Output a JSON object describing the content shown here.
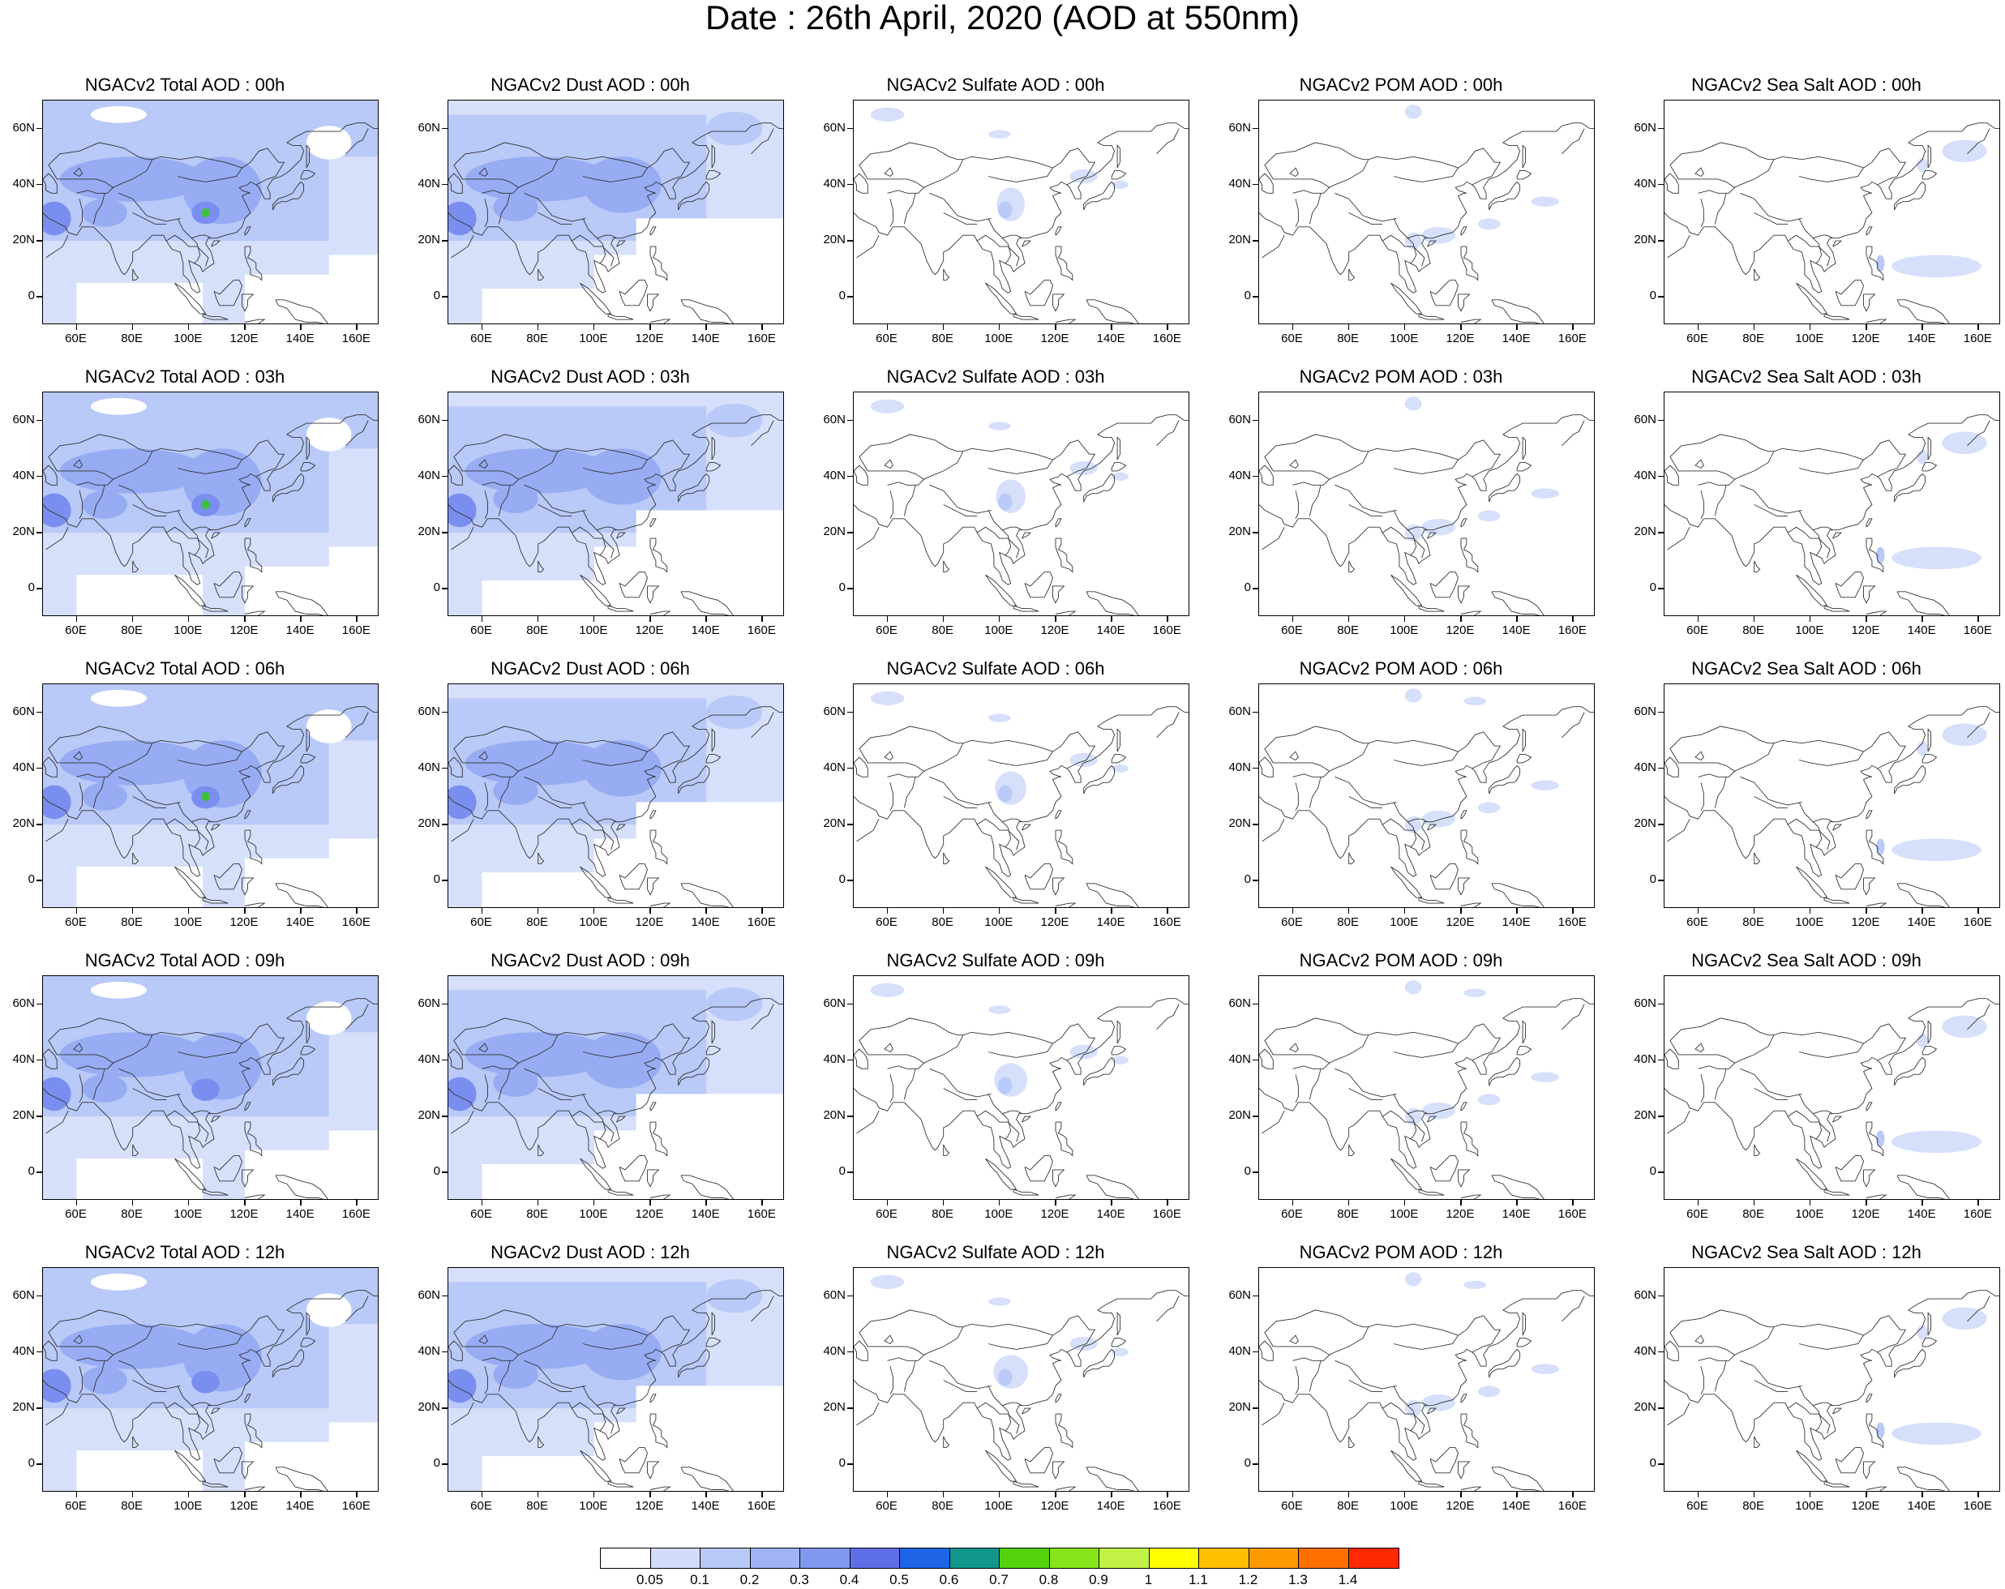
{
  "title": "Date : 26th April, 2020 (AOD at 550nm)",
  "map": {
    "lon_range": [
      48,
      168
    ],
    "lat_range": [
      -10,
      70
    ],
    "lon_ticks": [
      "60E",
      "80E",
      "100E",
      "120E",
      "140E",
      "160E"
    ],
    "lon_tick_values": [
      60,
      80,
      100,
      120,
      140,
      160
    ],
    "lat_ticks": [
      "60N",
      "40N",
      "20N",
      "0"
    ],
    "lat_tick_values": [
      60,
      40,
      20,
      0
    ]
  },
  "panels": [
    [
      "NGACv2 Total AOD : 00h",
      "NGACv2 Dust AOD : 00h",
      "NGACv2 Sulfate AOD : 00h",
      "NGACv2 POM AOD : 00h",
      "NGACv2 Sea Salt AOD : 00h"
    ],
    [
      "NGACv2 Total AOD : 03h",
      "NGACv2 Dust AOD : 03h",
      "NGACv2 Sulfate AOD : 03h",
      "NGACv2 POM AOD : 03h",
      "NGACv2 Sea Salt AOD : 03h"
    ],
    [
      "NGACv2 Total AOD : 06h",
      "NGACv2 Dust AOD : 06h",
      "NGACv2 Sulfate AOD : 06h",
      "NGACv2 POM AOD : 06h",
      "NGACv2 Sea Salt AOD : 06h"
    ],
    [
      "NGACv2 Total AOD : 09h",
      "NGACv2 Dust AOD : 09h",
      "NGACv2 Sulfate AOD : 09h",
      "NGACv2 POM AOD : 09h",
      "NGACv2 Sea Salt  AOD : 09h"
    ],
    [
      "NGACv2 Total AOD  : 12h",
      "NGACv2 Dust AOD : 12h",
      "NGACv2 Sulfate AOD : 12h",
      "NGACv2 POM  AOD : 12h",
      "NGACv2 Sea Salt  AOD : 12h"
    ]
  ],
  "colorbar": {
    "labels": [
      "0.05",
      "0.1",
      "0.2",
      "0.3",
      "0.4",
      "0.5",
      "0.6",
      "0.7",
      "0.8",
      "0.9",
      "1",
      "1.1",
      "1.2",
      "1.3",
      "1.4"
    ],
    "colors": [
      "#ffffff",
      "#d3ddfb",
      "#b8c8f8",
      "#9fb3f5",
      "#8299f0",
      "#5f6fe8",
      "#1e64e6",
      "#11968c",
      "#54d20c",
      "#87e61a",
      "#c3f247",
      "#ffff00",
      "#ffc000",
      "#ff9900",
      "#ff7000",
      "#ff2800"
    ]
  },
  "shading": {
    "light": "#d6e0fb",
    "medium": "#b9c9f8",
    "dark": "#97acf3",
    "darker": "#7a8ef0",
    "peak_green": "#3fbf3f"
  }
}
